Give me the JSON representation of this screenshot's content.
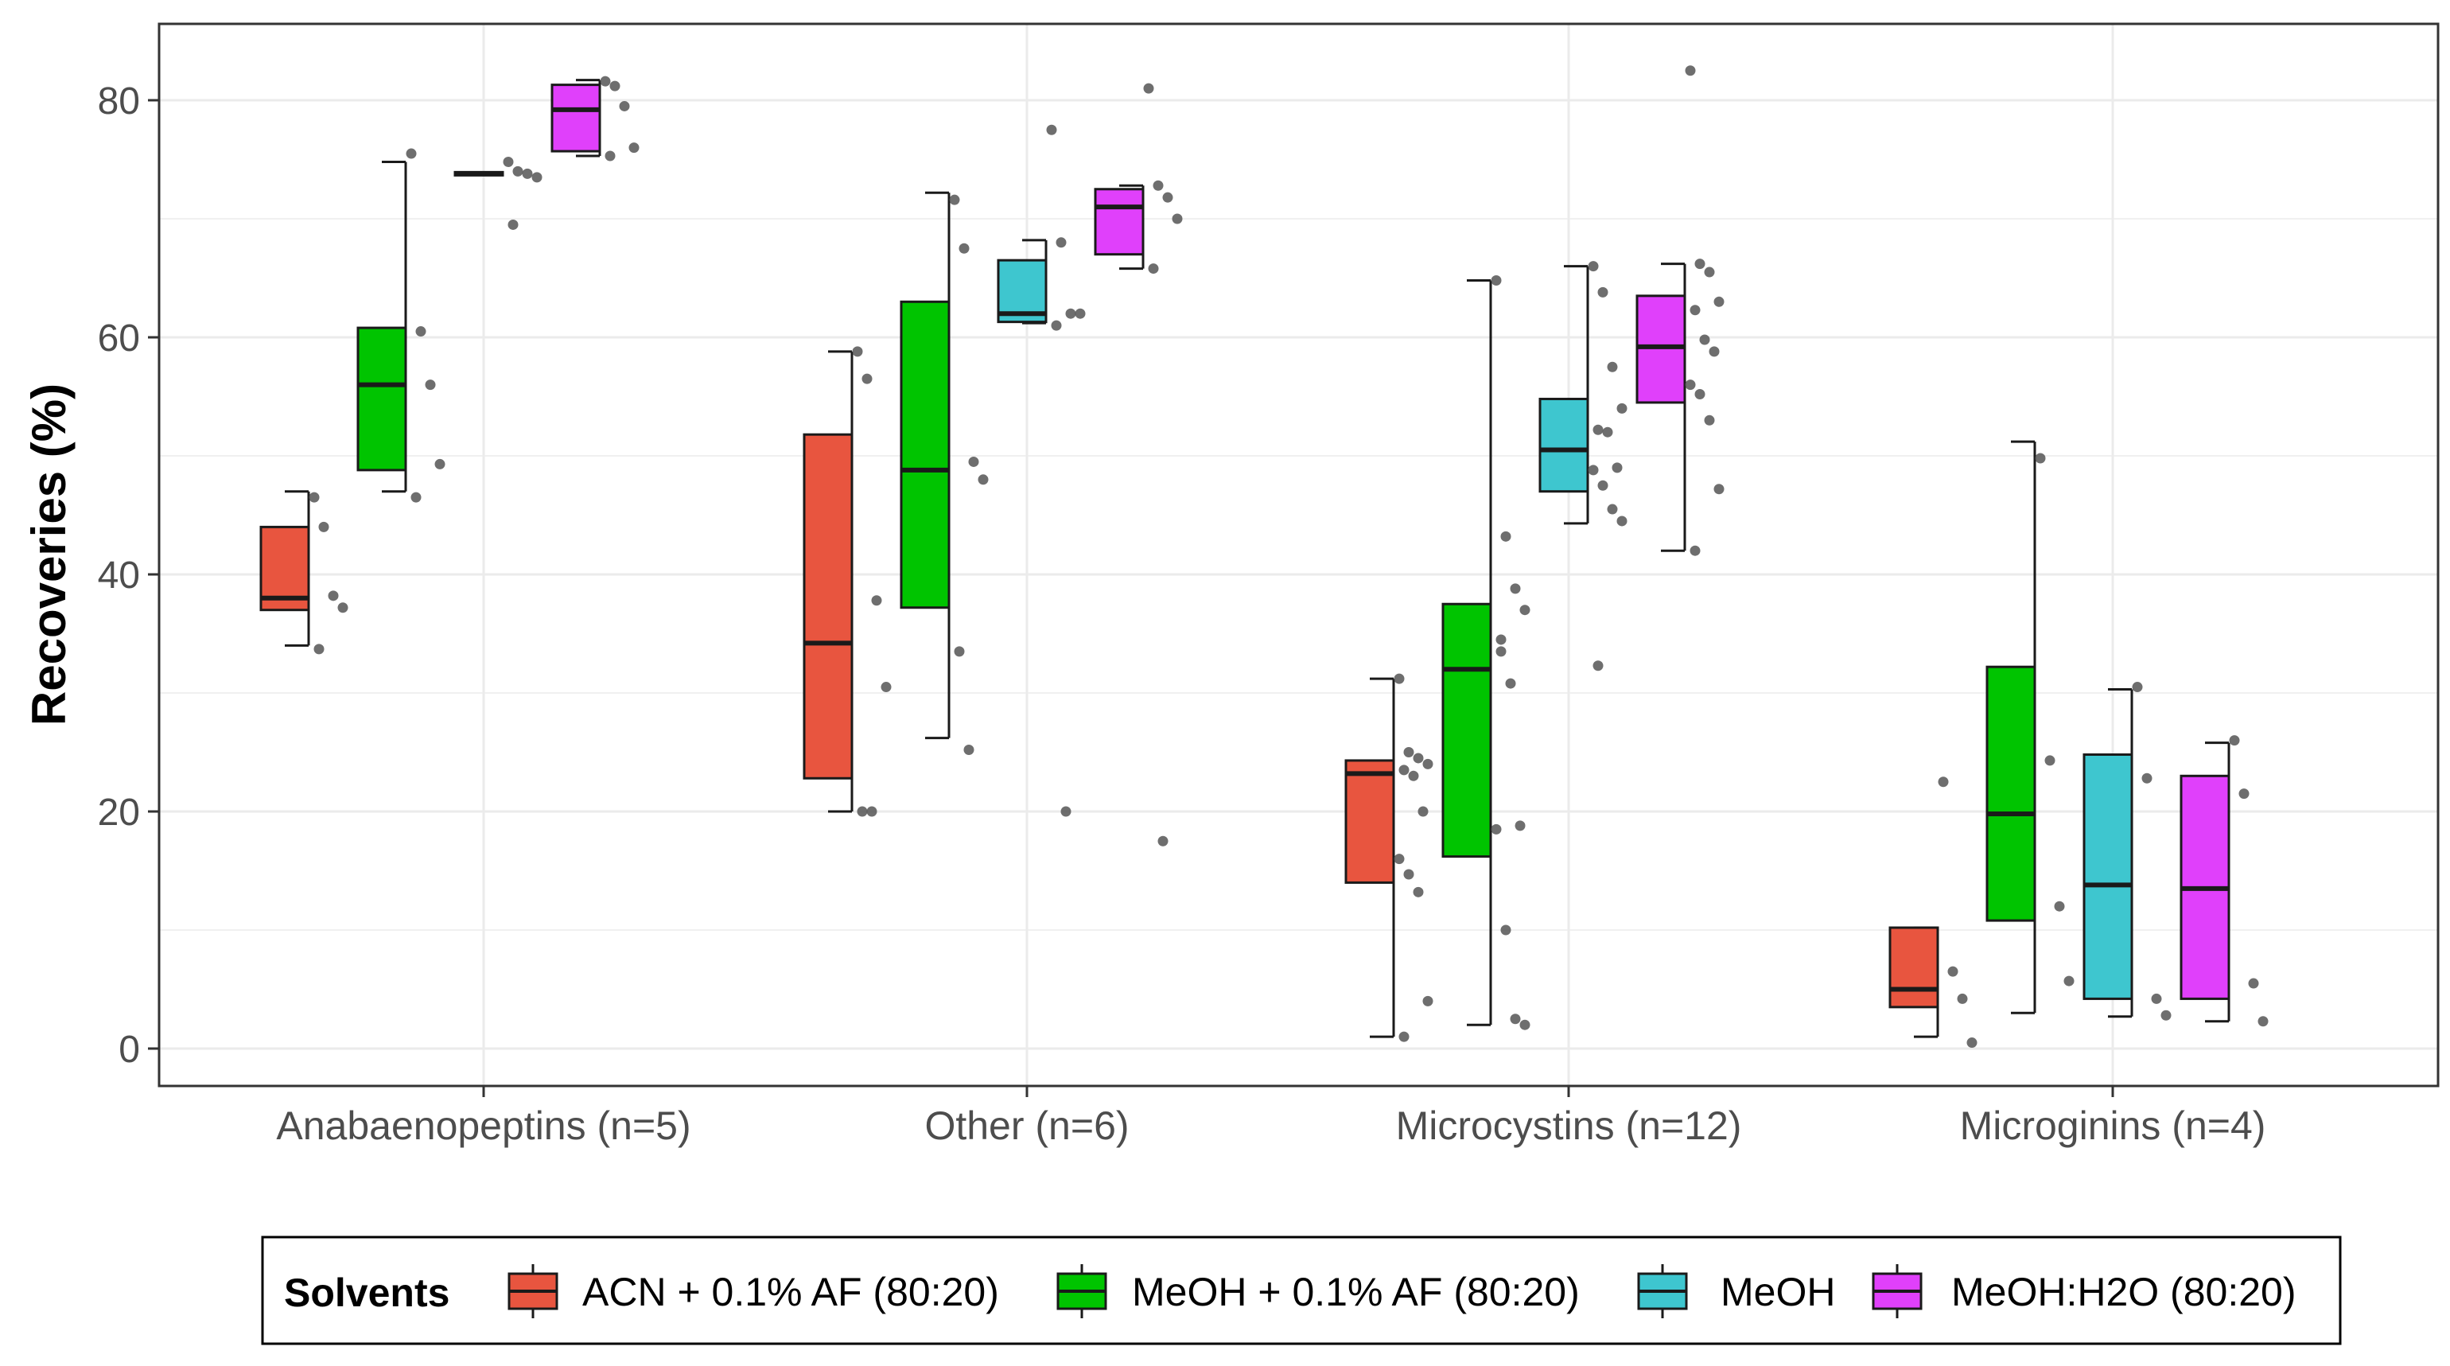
{
  "chart_data": {
    "type": "boxplot",
    "title": "",
    "xlabel": "",
    "ylabel": "Recoveries (%)",
    "ylim": [
      -3,
      86
    ],
    "yticks": [
      0,
      20,
      40,
      60,
      80
    ],
    "grid": true,
    "legend_position": "bottom",
    "legend_title": "Solvents",
    "categories": [
      "Anabaenopeptins (n=5)",
      "Other (n=6)",
      "Microcystins (n=12)",
      "Microginins (n=4)"
    ],
    "series": [
      {
        "name": "ACN + 0.1% AF (80:20)",
        "color": "#E8553F",
        "boxes": [
          {
            "category": "Anabaenopeptins (n=5)",
            "min": 34,
            "q1": 37,
            "median": 38,
            "q3": 44,
            "max": 47
          },
          {
            "category": "Other (n=6)",
            "min": 20,
            "q1": 22.8,
            "median": 34.2,
            "q3": 51.8,
            "max": 58.8
          },
          {
            "category": "Microcystins (n=12)",
            "min": 1,
            "q1": 14,
            "median": 23.2,
            "q3": 24.3,
            "max": 31.2
          },
          {
            "category": "Microginins (n=4)",
            "min": 1,
            "q1": 3.5,
            "median": 5,
            "q3": 10.2,
            "max": 10.2
          }
        ],
        "points": [
          {
            "category": "Anabaenopeptins (n=5)",
            "values": [
              46.5,
              44,
              38.2,
              37.2,
              33.7
            ]
          },
          {
            "category": "Other (n=6)",
            "values": [
              58.8,
              56.5,
              37.8,
              30.5,
              20,
              20
            ]
          },
          {
            "category": "Microcystins (n=12)",
            "values": [
              31.2,
              25,
              24.5,
              24,
              23.5,
              23,
              20,
              16,
              14.7,
              13.2,
              4,
              1
            ]
          },
          {
            "category": "Microginins (n=4)",
            "values": [
              22.5,
              6.5,
              4.2,
              0.5
            ]
          }
        ]
      },
      {
        "name": "MeOH + 0.1% AF (80:20)",
        "color": "#00C400",
        "boxes": [
          {
            "category": "Anabaenopeptins (n=5)",
            "min": 47,
            "q1": 48.8,
            "median": 56,
            "q3": 60.8,
            "max": 74.8
          },
          {
            "category": "Other (n=6)",
            "min": 26.2,
            "q1": 37.2,
            "median": 48.8,
            "q3": 63,
            "max": 72.2
          },
          {
            "category": "Microcystins (n=12)",
            "min": 2,
            "q1": 16.2,
            "median": 32,
            "q3": 37.5,
            "max": 64.8
          },
          {
            "category": "Microginins (n=4)",
            "min": 3,
            "q1": 10.8,
            "median": 19.8,
            "q3": 32.2,
            "max": 51.2
          }
        ],
        "points": [
          {
            "category": "Anabaenopeptins (n=5)",
            "values": [
              75.5,
              60.5,
              56,
              49.3,
              46.5
            ]
          },
          {
            "category": "Other (n=6)",
            "values": [
              71.6,
              67.5,
              49.5,
              48,
              33.5,
              25.2
            ]
          },
          {
            "category": "Microcystins (n=12)",
            "values": [
              64.8,
              43.2,
              38.8,
              37,
              34.5,
              30.8,
              18.8,
              18.5,
              10,
              2.5,
              2,
              33.5
            ]
          },
          {
            "category": "Microginins (n=4)",
            "values": [
              49.8,
              24.3,
              12,
              5.7
            ]
          }
        ]
      },
      {
        "name": "MeOH",
        "color": "#3EC6CF",
        "boxes": [
          {
            "category": "Anabaenopeptins (n=5)",
            "min": 73.8,
            "q1": 73.8,
            "median": 73.8,
            "q3": 73.8,
            "max": 73.8
          },
          {
            "category": "Other (n=6)",
            "min": 61.2,
            "q1": 61.3,
            "median": 62,
            "q3": 66.5,
            "max": 68.2
          },
          {
            "category": "Microcystins (n=12)",
            "min": 44.3,
            "q1": 47,
            "median": 50.5,
            "q3": 54.8,
            "max": 66
          },
          {
            "category": "Microginins (n=4)",
            "min": 2.7,
            "q1": 4.2,
            "median": 13.8,
            "q3": 24.8,
            "max": 30.3
          }
        ],
        "points": [
          {
            "category": "Anabaenopeptins (n=5)",
            "values": [
              74.8,
              74,
              73.8,
              73.5,
              69.5
            ]
          },
          {
            "category": "Other (n=6)",
            "values": [
              77.5,
              68,
              62,
              62,
              61,
              20
            ]
          },
          {
            "category": "Microcystins (n=12)",
            "values": [
              66,
              63.8,
              57.5,
              54,
              52.2,
              52,
              49,
              48.8,
              47.5,
              45.5,
              44.5,
              32.3
            ]
          },
          {
            "category": "Microginins (n=4)",
            "values": [
              30.5,
              22.8,
              4.2,
              2.8
            ]
          }
        ]
      },
      {
        "name": "MeOH:H2O (80:20)",
        "color": "#E040FB",
        "boxes": [
          {
            "category": "Anabaenopeptins (n=5)",
            "min": 75.3,
            "q1": 75.7,
            "median": 79.2,
            "q3": 81.3,
            "max": 81.7
          },
          {
            "category": "Other (n=6)",
            "min": 65.8,
            "q1": 67,
            "median": 71,
            "q3": 72.5,
            "max": 72.8
          },
          {
            "category": "Microcystins (n=12)",
            "min": 42,
            "q1": 54.5,
            "median": 59.2,
            "q3": 63.5,
            "max": 66.2
          },
          {
            "category": "Microginins (n=4)",
            "min": 2.3,
            "q1": 4.2,
            "median": 13.5,
            "q3": 23,
            "max": 25.8
          }
        ],
        "points": [
          {
            "category": "Anabaenopeptins (n=5)",
            "values": [
              81.6,
              81.2,
              79.5,
              76,
              75.3
            ]
          },
          {
            "category": "Other (n=6)",
            "values": [
              81,
              72.8,
              71.8,
              70,
              65.8,
              17.5
            ]
          },
          {
            "category": "Microcystins (n=12)",
            "values": [
              82.5,
              66.2,
              65.5,
              63,
              62.3,
              59.8,
              58.8,
              56,
              55.2,
              53,
              47.2,
              42
            ]
          },
          {
            "category": "Microginins (n=4)",
            "values": [
              26,
              21.5,
              5.5,
              2.3
            ]
          }
        ]
      }
    ]
  }
}
